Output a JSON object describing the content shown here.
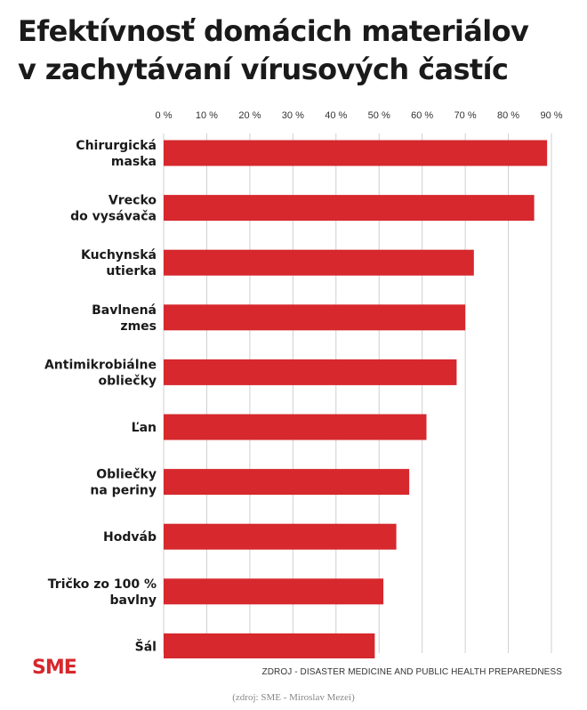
{
  "chart_data": {
    "type": "bar",
    "orientation": "horizontal",
    "title_lines": [
      "Efektívnosť domácich materiálov",
      "v zachytávaní vírusových častíc"
    ],
    "categories": [
      [
        "Chirurgická",
        "maska"
      ],
      [
        "Vrecko",
        "do vysávača"
      ],
      [
        "Kuchynská",
        "utierka"
      ],
      [
        "Bavlnená",
        "zmes"
      ],
      [
        "Antimikrobiálne",
        "obliečky"
      ],
      [
        "Ľan"
      ],
      [
        "Obliečky",
        "na periny"
      ],
      [
        "Hodváb"
      ],
      [
        "Tričko zo 100 %",
        "bavlny"
      ],
      [
        "Šál"
      ]
    ],
    "values": [
      89,
      86,
      72,
      70,
      68,
      61,
      57,
      54,
      51,
      49
    ],
    "xlim": [
      0,
      90
    ],
    "ticks": [
      "0 %",
      "10 %",
      "20 %",
      "30 %",
      "40 %",
      "50 %",
      "60 %",
      "70 %",
      "80 %",
      "90 %"
    ],
    "grid": "vertical",
    "bar_color": "#d6282d",
    "grid_color": "#cfcfcf"
  },
  "footer": {
    "logo": "SME",
    "source": "ZDROJ - DISASTER MEDICINE AND PUBLIC HEALTH PREPAREDNESS",
    "credit": "(zdroj: SME - Miroslav Mezei)"
  },
  "colors": {
    "accent": "#d6282d"
  }
}
